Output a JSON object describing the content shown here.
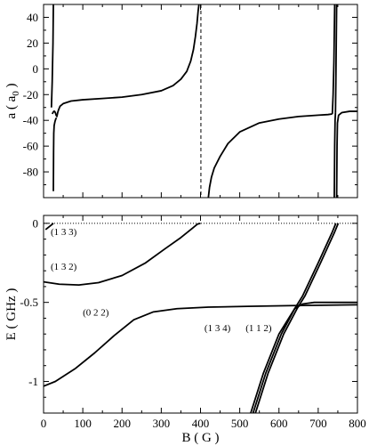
{
  "chart_data": [
    {
      "type": "line",
      "ylabel": "a ( a0 )",
      "ylabel_main": "a ( a",
      "ylabel_sub": "0",
      "ylabel_close": " )",
      "xlim": [
        0,
        800
      ],
      "ylim": [
        -100,
        50
      ],
      "yticks": [
        40,
        20,
        0,
        -20,
        -40,
        -60,
        -80
      ],
      "ytick_labels": [
        "40",
        "20",
        "0",
        "-20",
        "-40",
        "-60",
        "-80"
      ],
      "grid": false,
      "series": [
        {
          "style": "solid",
          "points": [
            [
              20,
              -30
            ],
            [
              22,
              -10
            ],
            [
              24,
              20
            ],
            [
              25,
              50
            ]
          ]
        },
        {
          "style": "solid",
          "points": [
            [
              25,
              -95
            ],
            [
              25.5,
              -65
            ],
            [
              26,
              -50
            ],
            [
              27,
              -44
            ],
            [
              29,
              -41
            ],
            [
              31,
              -39
            ],
            [
              33,
              -38
            ]
          ]
        },
        {
          "style": "solid",
          "points": [
            [
              22,
              -35
            ],
            [
              26,
              -33
            ],
            [
              28,
              -33
            ],
            [
              30,
              -34
            ],
            [
              32,
              -36
            ],
            [
              34,
              -37
            ],
            [
              36,
              -34
            ],
            [
              38,
              -32
            ],
            [
              42,
              -29
            ],
            [
              50,
              -27
            ],
            [
              70,
              -25
            ],
            [
              100,
              -24
            ],
            [
              150,
              -23
            ],
            [
              200,
              -22
            ],
            [
              250,
              -20
            ],
            [
              300,
              -17
            ],
            [
              330,
              -13
            ],
            [
              350,
              -8
            ],
            [
              365,
              -2
            ],
            [
              375,
              6
            ],
            [
              382,
              15
            ],
            [
              387,
              25
            ],
            [
              391,
              35
            ],
            [
              394,
              45
            ],
            [
              396,
              50
            ]
          ]
        },
        {
          "style": "dashed",
          "points": [
            [
              401,
              50
            ],
            [
              401,
              -100
            ]
          ]
        },
        {
          "style": "solid",
          "points": [
            [
              420,
              -100
            ],
            [
              423,
              -92
            ],
            [
              428,
              -84
            ],
            [
              435,
              -77
            ],
            [
              450,
              -68
            ],
            [
              470,
              -58
            ],
            [
              500,
              -49
            ],
            [
              550,
              -42
            ],
            [
              600,
              -39
            ],
            [
              650,
              -37
            ],
            [
              700,
              -36
            ],
            [
              725,
              -35.5
            ],
            [
              736,
              -35
            ]
          ]
        },
        {
          "style": "solid",
          "points": [
            [
              736,
              -35
            ],
            [
              738,
              -20
            ],
            [
              740,
              5
            ],
            [
              742,
              50
            ]
          ]
        },
        {
          "style": "solid",
          "points": [
            [
              741,
              -100
            ],
            [
              742,
              -60
            ],
            [
              743,
              -40
            ],
            [
              744,
              -34
            ]
          ]
        },
        {
          "style": "solid",
          "points": [
            [
              744,
              -34
            ],
            [
              745,
              -10
            ],
            [
              746,
              20
            ],
            [
              747,
              50
            ]
          ]
        },
        {
          "style": "solid",
          "points": [
            [
              747,
              -100
            ],
            [
              748,
              -60
            ],
            [
              749,
              -42
            ],
            [
              752,
              -36
            ],
            [
              760,
              -34
            ],
            [
              780,
              -33
            ],
            [
              800,
              -33
            ]
          ]
        }
      ]
    },
    {
      "type": "line",
      "xlabel": "B ( G )",
      "ylabel": "E ( GHz )",
      "xlim": [
        0,
        800
      ],
      "ylim": [
        -1.2,
        0.05
      ],
      "xticks": [
        0,
        100,
        200,
        300,
        400,
        500,
        600,
        700,
        800
      ],
      "xtick_labels": [
        "0",
        "100",
        "200",
        "300",
        "400",
        "500",
        "600",
        "700",
        "800"
      ],
      "yticks": [
        0,
        -0.5,
        -1
      ],
      "ytick_labels": [
        "0",
        "-0.5",
        "-1"
      ],
      "grid": false,
      "annotations": [
        {
          "text": "(1 3 3)",
          "x": 18,
          "y": -0.05
        },
        {
          "text": "(1 3 2)",
          "x": 18,
          "y": -0.27
        },
        {
          "text": "(0 2 2)",
          "x": 100,
          "y": -0.56
        },
        {
          "text": "(1 3 4)",
          "x": 410,
          "y": -0.66
        },
        {
          "text": "(1 1 2)",
          "x": 515,
          "y": -0.66
        }
      ],
      "series": [
        {
          "style": "dotted",
          "points": [
            [
              0,
              0
            ],
            [
              800,
              0
            ]
          ]
        },
        {
          "style": "solid",
          "points": [
            [
              5,
              -0.04
            ],
            [
              10,
              -0.03
            ],
            [
              15,
              -0.02
            ],
            [
              20,
              -0.01
            ],
            [
              25,
              0
            ]
          ]
        },
        {
          "style": "solid",
          "points": [
            [
              0,
              -0.37
            ],
            [
              40,
              -0.385
            ],
            [
              90,
              -0.39
            ],
            [
              140,
              -0.375
            ],
            [
              200,
              -0.33
            ],
            [
              260,
              -0.25
            ],
            [
              310,
              -0.16
            ],
            [
              350,
              -0.09
            ],
            [
              380,
              -0.03
            ],
            [
              392,
              -0.005
            ],
            [
              400,
              0
            ]
          ]
        },
        {
          "style": "solid",
          "points": [
            [
              0,
              -1.03
            ],
            [
              30,
              -1.0
            ],
            [
              80,
              -0.92
            ],
            [
              130,
              -0.82
            ],
            [
              180,
              -0.71
            ],
            [
              230,
              -0.61
            ],
            [
              280,
              -0.56
            ],
            [
              340,
              -0.54
            ],
            [
              420,
              -0.53
            ],
            [
              520,
              -0.525
            ],
            [
              640,
              -0.52
            ],
            [
              800,
              -0.515
            ]
          ]
        },
        {
          "style": "solid",
          "points": [
            [
              528,
              -1.2
            ],
            [
              560,
              -0.95
            ],
            [
              600,
              -0.7
            ],
            [
              640,
              -0.54
            ],
            [
              660,
              -0.51
            ],
            [
              690,
              -0.5
            ],
            [
              800,
              -0.5
            ]
          ]
        },
        {
          "style": "solid",
          "points": [
            [
              534,
              -1.2
            ],
            [
              566,
              -0.95
            ],
            [
              606,
              -0.7
            ],
            [
              640,
              -0.54
            ],
            [
              660,
              -0.46
            ],
            [
              700,
              -0.25
            ],
            [
              735,
              -0.06
            ],
            [
              745,
              0
            ]
          ]
        },
        {
          "style": "solid",
          "points": [
            [
              540,
              -1.2
            ],
            [
              572,
              -0.95
            ],
            [
              612,
              -0.7
            ],
            [
              646,
              -0.54
            ],
            [
              666,
              -0.46
            ],
            [
              706,
              -0.25
            ],
            [
              741,
              -0.06
            ],
            [
              751,
              0
            ]
          ]
        }
      ]
    }
  ]
}
